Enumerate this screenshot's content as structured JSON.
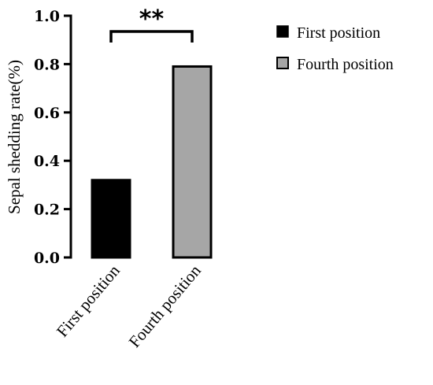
{
  "chart_data": {
    "type": "bar",
    "categories": [
      "First position",
      "Fourth position"
    ],
    "values": [
      0.32,
      0.79
    ],
    "ylabel": "Sepal shedding rate(%)",
    "xlabel": "",
    "ylim": [
      0,
      1.0
    ],
    "yticks": [
      "0.0",
      "0.2",
      "0.4",
      "0.6",
      "0.8",
      "1.0"
    ],
    "grid": false,
    "legend": {
      "placement": "top-right",
      "entries": [
        {
          "label": "First position",
          "color": "#000000"
        },
        {
          "label": "Fourth position",
          "color": "#a6a6a6"
        }
      ]
    },
    "series_colors": [
      "#000000",
      "#a6a6a6"
    ],
    "bar_edge_color": "#000000",
    "significance": {
      "label": "**",
      "between": [
        "First position",
        "Fourth position"
      ]
    }
  }
}
